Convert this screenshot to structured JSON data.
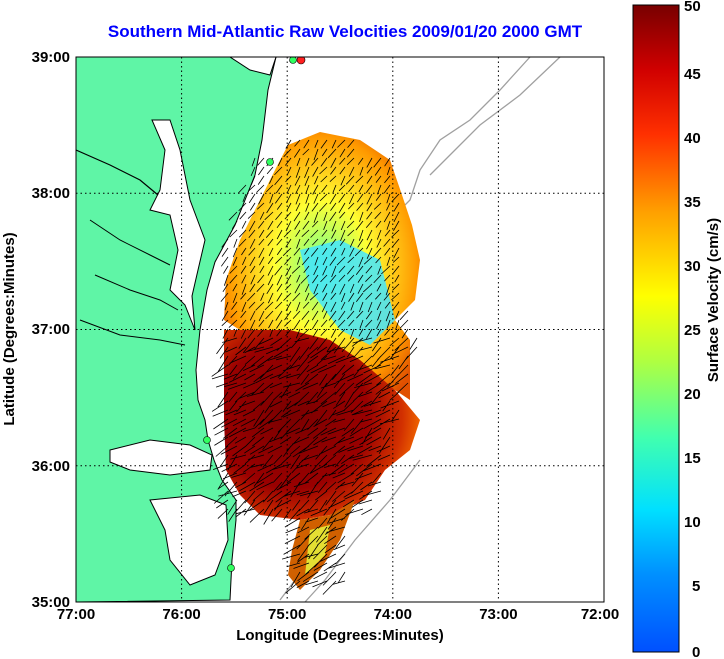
{
  "title": "Southern Mid-Atlantic Raw Velocities 2009/01/20 2000 GMT",
  "xlabel": "Longitude (Degrees:Minutes)",
  "ylabel": "Latitude (Degrees:Minutes)",
  "colorbar_label": "Surface Velocity (cm/s)",
  "x_ticks": [
    "77:00",
    "76:00",
    "75:00",
    "74:00",
    "73:00",
    "72:00"
  ],
  "y_ticks": [
    "39:00",
    "38:00",
    "37:00",
    "36:00",
    "35:00"
  ],
  "colorbar_ticks": [
    "50",
    "45",
    "40",
    "35",
    "30",
    "25",
    "20",
    "15",
    "10",
    "5",
    "0"
  ],
  "colors": {
    "land": "#5ff5a6",
    "title": "#0000ff",
    "coast": "#000000",
    "bathy": "#a0a0a0"
  },
  "chart_data": {
    "type": "heatmap",
    "title": "Southern Mid-Atlantic Raw Velocities 2009/01/20 2000 GMT",
    "xlabel": "Longitude (Degrees:Minutes)",
    "ylabel": "Latitude (Degrees:Minutes)",
    "xlim": [
      -77,
      -72
    ],
    "ylim": [
      35,
      39
    ],
    "grid": true,
    "colorbar": {
      "label": "Surface Velocity (cm/s)",
      "range": [
        0,
        50
      ],
      "colormap": "jet"
    }
  }
}
